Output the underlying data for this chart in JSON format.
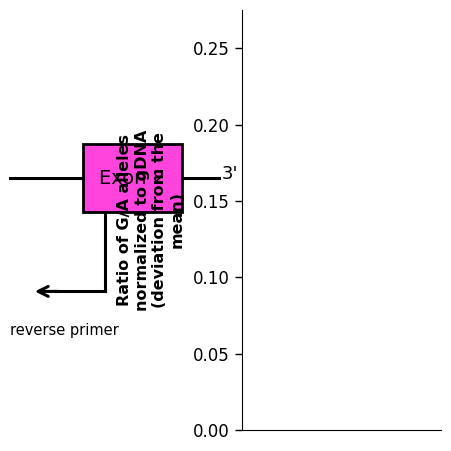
{
  "background_color": "#ffffff",
  "exon_label": "Exon 2",
  "exon_color": "#ff44dd",
  "exon_edge_color": "#000000",
  "three_prime_label": "3'",
  "reverse_primer_label": "reverse primer",
  "ylabel_line1": "Ratio of G/A alleles",
  "ylabel_line2": "normalized to gDNA",
  "ylabel_line3": "(deviation from the",
  "ylabel_line4": "mean)",
  "yticks": [
    0.0,
    0.05,
    0.1,
    0.15,
    0.2,
    0.25
  ],
  "ylim": [
    0.0,
    0.275
  ],
  "ylabel_fontsize": 11.5,
  "ytick_fontsize": 12,
  "exon_fontsize": 14,
  "primer_fontsize": 10.5,
  "three_prime_fontsize": 13
}
